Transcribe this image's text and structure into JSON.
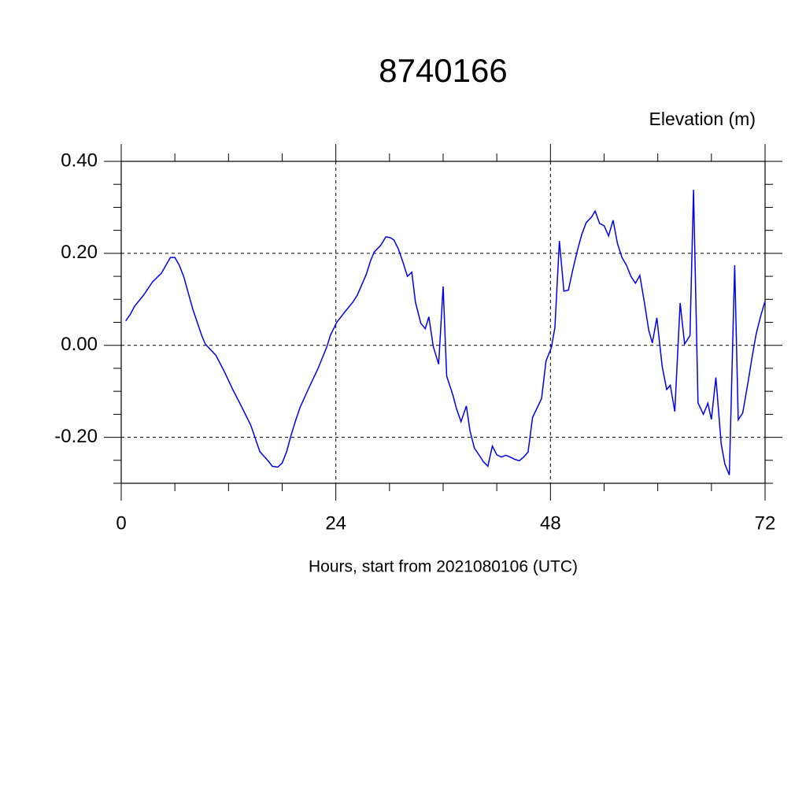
{
  "chart_data": {
    "type": "line",
    "title": "8740166",
    "ylabel": "Elevation (m)",
    "xlabel": "Hours, start from 2021080106 (UTC)",
    "xlim": [
      0,
      72
    ],
    "ylim": [
      -0.3,
      0.4
    ],
    "xticks": [
      0,
      24,
      48,
      72
    ],
    "xminorticks": [
      6,
      12,
      18,
      30,
      36,
      42,
      54,
      60,
      66
    ],
    "yticks": [
      {
        "value": -0.2,
        "label": "-0.20"
      },
      {
        "value": 0,
        "label": "0.00"
      },
      {
        "value": 0.2,
        "label": "0.20"
      },
      {
        "value": 0.4,
        "label": "0.40"
      }
    ],
    "yminorticks": [
      -0.3,
      -0.25,
      -0.15,
      -0.1,
      -0.05,
      0.05,
      0.1,
      0.15,
      0.25,
      0.3,
      0.35
    ],
    "grid": true,
    "series": [
      {
        "name": "Elevation",
        "color": "#0000ee",
        "x": [
          0.5,
          1.0,
          1.5,
          2.5,
          3.5,
          4.5,
          5.5,
          6.0,
          6.5,
          7.0,
          8.0,
          9.0,
          9.4,
          10.6,
          11.5,
          12.5,
          13.5,
          14.5,
          15.5,
          16.5,
          16.9,
          17.5,
          18.0,
          18.5,
          19.0,
          19.5,
          20.0,
          21.0,
          22.0,
          23.0,
          23.4,
          24.1,
          24.9,
          25.9,
          26.4,
          27.4,
          27.9,
          28.3,
          29.0,
          29.6,
          30.1,
          30.5,
          31.0,
          31.5,
          32.0,
          32.5,
          32.9,
          33.5,
          34.0,
          34.4,
          34.9,
          35.5,
          36.0,
          36.4,
          37.1,
          37.5,
          38.0,
          38.6,
          39.0,
          39.5,
          40.1,
          40.5,
          41.0,
          41.5,
          42.0,
          42.5,
          43.0,
          43.5,
          44.0,
          44.5,
          45.0,
          45.5,
          46.0,
          47.0,
          47.5,
          48.1,
          48.5,
          49.0,
          49.5,
          50.0,
          50.5,
          51.0,
          51.5,
          52.0,
          52.6,
          53.0,
          53.5,
          54.0,
          54.5,
          55.0,
          55.5,
          56.0,
          56.5,
          57.0,
          57.5,
          58.0,
          58.5,
          59.0,
          59.4,
          59.9,
          60.5,
          61.0,
          61.4,
          61.9,
          62.5,
          63.0,
          63.6,
          64.0,
          64.5,
          65.1,
          65.6,
          66.0,
          66.5,
          67.1,
          67.5,
          68.0,
          68.6,
          69.0,
          69.5,
          70.1,
          70.5,
          71.0,
          71.5,
          72.0
        ],
        "values": [
          0.053,
          0.067,
          0.085,
          0.109,
          0.138,
          0.157,
          0.191,
          0.191,
          0.174,
          0.149,
          0.079,
          0.021,
          0.003,
          -0.022,
          -0.056,
          -0.097,
          -0.135,
          -0.174,
          -0.231,
          -0.253,
          -0.263,
          -0.265,
          -0.256,
          -0.231,
          -0.195,
          -0.164,
          -0.135,
          -0.092,
          -0.051,
          -0.003,
          0.022,
          0.05,
          0.07,
          0.094,
          0.109,
          0.154,
          0.185,
          0.203,
          0.217,
          0.236,
          0.234,
          0.229,
          0.209,
          0.181,
          0.15,
          0.159,
          0.094,
          0.048,
          0.036,
          0.062,
          -0.003,
          -0.041,
          0.128,
          -0.067,
          -0.109,
          -0.138,
          -0.166,
          -0.132,
          -0.186,
          -0.224,
          -0.241,
          -0.253,
          -0.263,
          -0.219,
          -0.238,
          -0.243,
          -0.239,
          -0.243,
          -0.248,
          -0.251,
          -0.243,
          -0.232,
          -0.157,
          -0.116,
          -0.034,
          -0.005,
          0.039,
          0.227,
          0.118,
          0.12,
          0.164,
          0.205,
          0.241,
          0.267,
          0.279,
          0.292,
          0.265,
          0.26,
          0.238,
          0.272,
          0.221,
          0.191,
          0.174,
          0.15,
          0.135,
          0.152,
          0.094,
          0.032,
          0.005,
          0.06,
          -0.046,
          -0.096,
          -0.087,
          -0.144,
          0.092,
          0.003,
          0.021,
          0.338,
          -0.125,
          -0.15,
          -0.126,
          -0.161,
          -0.07,
          -0.215,
          -0.258,
          -0.282,
          0.174,
          -0.162,
          -0.147,
          -0.08,
          -0.031,
          0.024,
          0.063,
          0.096
        ]
      }
    ]
  }
}
